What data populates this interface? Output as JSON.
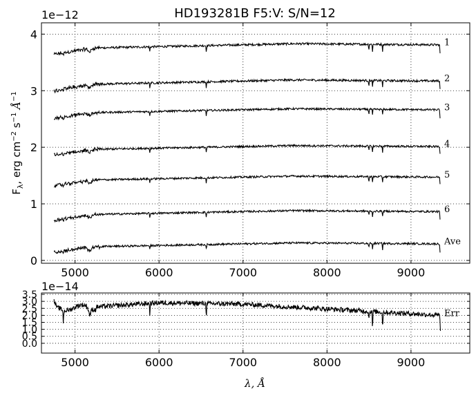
{
  "chart_data": [
    {
      "type": "line",
      "title": "HD193281B  F5:V:  S/N=12",
      "offset_label": "1e−12",
      "ylabel_parts": [
        "F",
        "λ",
        ", erg cm",
        "−2",
        " s",
        "−1",
        " Å",
        "−1"
      ],
      "xlim": [
        4600,
        9700
      ],
      "ylim": [
        -0.05,
        4.2
      ],
      "xticks": [
        5000,
        6000,
        7000,
        8000,
        9000
      ],
      "yticks": [
        0,
        1,
        2,
        3,
        4
      ],
      "grid": true,
      "x_range": [
        4750,
        9350
      ],
      "series": [
        {
          "name": "1",
          "baseline": 3.64,
          "top": 3.83
        },
        {
          "name": "2",
          "baseline": 3.0,
          "top": 3.19
        },
        {
          "name": "3",
          "baseline": 2.51,
          "top": 2.68
        },
        {
          "name": "4",
          "baseline": 1.86,
          "top": 2.03
        },
        {
          "name": "5",
          "baseline": 1.32,
          "top": 1.49
        },
        {
          "name": "6",
          "baseline": 0.71,
          "top": 0.88
        },
        {
          "name": "Ave",
          "baseline": 0.14,
          "top": 0.31
        }
      ]
    },
    {
      "type": "line",
      "offset_label": "1e−14",
      "xlabel_parts": [
        "λ",
        ", ",
        "Å"
      ],
      "xlim": [
        4600,
        9700
      ],
      "ylim": [
        -0.7,
        3.6
      ],
      "xticks": [
        5000,
        6000,
        7000,
        8000,
        9000
      ],
      "yticks": [
        0.0,
        0.5,
        1.0,
        1.5,
        2.0,
        2.5,
        3.0,
        3.5
      ],
      "ytick_labels": [
        "0.0",
        "0.5",
        "1.0",
        "1.5",
        "2.0",
        "2.5",
        "3.0",
        "3.5"
      ],
      "grid": true,
      "series": [
        {
          "name": "Err"
        }
      ]
    }
  ]
}
